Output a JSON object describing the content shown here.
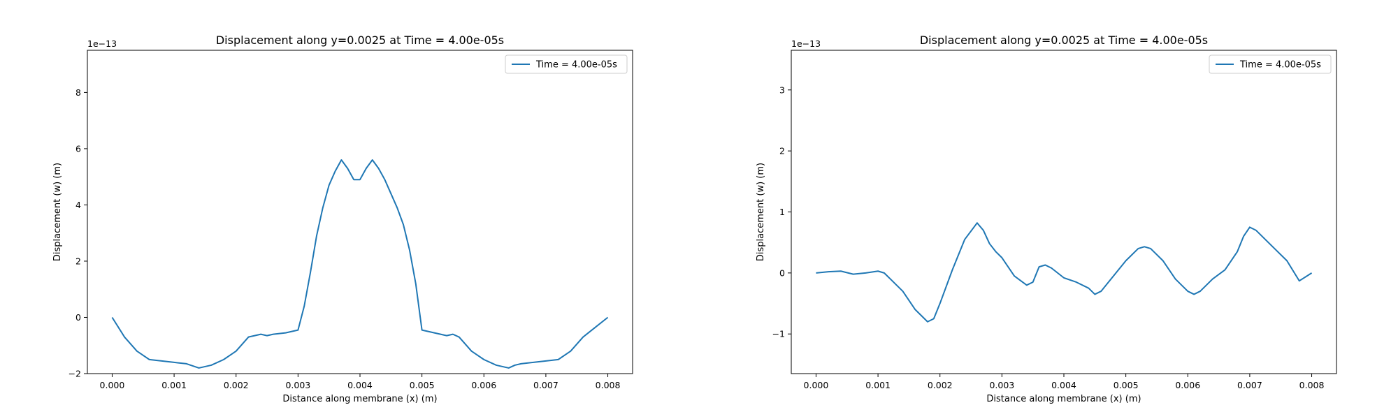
{
  "chart_data": [
    {
      "type": "line",
      "title": "Displacement along y=0.0025 at Time = 4.00e-05s",
      "xlabel": "Distance along membrane (x) (m)",
      "ylabel": "Displacement (w) (m)",
      "offset_text": "1e−13",
      "xlim": [
        -0.0004,
        0.0084
      ],
      "ylim": [
        -2.0,
        9.5
      ],
      "x_ticks": [
        "0.000",
        "0.001",
        "0.002",
        "0.003",
        "0.004",
        "0.005",
        "0.006",
        "0.007",
        "0.008"
      ],
      "y_ticks": [
        "−2",
        "0",
        "2",
        "4",
        "6",
        "8"
      ],
      "legend_position": "upper right",
      "grid": false,
      "series": [
        {
          "name": "Time = 4.00e-05s",
          "color": "#1f77b4",
          "x": [
            0.0,
            0.0002,
            0.0004,
            0.0006,
            0.0008,
            0.001,
            0.0012,
            0.0014,
            0.0015,
            0.0016,
            0.0018,
            0.002,
            0.0022,
            0.0024,
            0.0025,
            0.0026,
            0.0028,
            0.003,
            0.0031,
            0.0032,
            0.0033,
            0.0034,
            0.0035,
            0.0036,
            0.0037,
            0.0038,
            0.0039,
            0.004,
            0.0041,
            0.0042,
            0.0043,
            0.0044,
            0.0045,
            0.0046,
            0.0047,
            0.0048,
            0.0049,
            0.005,
            0.0052,
            0.0054,
            0.0055,
            0.0056,
            0.0058,
            0.006,
            0.0062,
            0.0064,
            0.0065,
            0.0066,
            0.0068,
            0.007,
            0.0072,
            0.0074,
            0.0076,
            0.0078,
            0.008
          ],
          "y": [
            0.0,
            -0.7,
            -1.2,
            -1.5,
            -1.55,
            -1.6,
            -1.65,
            -1.8,
            -1.75,
            -1.7,
            -1.5,
            -1.2,
            -0.7,
            -0.6,
            -0.65,
            -0.6,
            -0.55,
            -0.45,
            0.4,
            1.6,
            2.9,
            3.9,
            4.7,
            5.2,
            5.6,
            5.3,
            4.9,
            4.9,
            5.3,
            5.6,
            5.3,
            4.9,
            4.4,
            3.9,
            3.3,
            2.4,
            1.2,
            -0.45,
            -0.55,
            -0.65,
            -0.6,
            -0.7,
            -1.2,
            -1.5,
            -1.7,
            -1.8,
            -1.7,
            -1.65,
            -1.6,
            -1.55,
            -1.5,
            -1.2,
            -0.7,
            -0.35,
            0.0
          ]
        }
      ]
    },
    {
      "type": "line",
      "title": "Displacement along y=0.0025 at Time = 4.00e-05s",
      "xlabel": "Distance along membrane (x) (m)",
      "ylabel": "Displacement (w) (m)",
      "offset_text": "1e−13",
      "xlim": [
        -0.0004,
        0.0084
      ],
      "ylim": [
        -1.65,
        3.65
      ],
      "x_ticks": [
        "0.000",
        "0.001",
        "0.002",
        "0.003",
        "0.004",
        "0.005",
        "0.006",
        "0.007",
        "0.008"
      ],
      "y_ticks": [
        "−1",
        "0",
        "1",
        "2",
        "3"
      ],
      "legend_position": "upper right",
      "grid": false,
      "series": [
        {
          "name": "Time = 4.00e-05s",
          "color": "#1f77b4",
          "x": [
            0.0,
            0.0002,
            0.0004,
            0.0006,
            0.0008,
            0.001,
            0.0011,
            0.0012,
            0.0014,
            0.0016,
            0.0018,
            0.0019,
            0.002,
            0.0022,
            0.0024,
            0.0026,
            0.0027,
            0.0028,
            0.0029,
            0.003,
            0.0032,
            0.0034,
            0.0035,
            0.0036,
            0.0037,
            0.0038,
            0.004,
            0.0042,
            0.0044,
            0.0045,
            0.0046,
            0.0048,
            0.005,
            0.0052,
            0.0053,
            0.0054,
            0.0056,
            0.0058,
            0.006,
            0.0061,
            0.0062,
            0.0064,
            0.0066,
            0.0068,
            0.0069,
            0.007,
            0.0071,
            0.0072,
            0.0074,
            0.0076,
            0.0078,
            0.008
          ],
          "y": [
            0.0,
            0.02,
            0.03,
            -0.02,
            0.0,
            0.03,
            0.0,
            -0.1,
            -0.3,
            -0.6,
            -0.8,
            -0.75,
            -0.5,
            0.05,
            0.55,
            0.82,
            0.7,
            0.48,
            0.35,
            0.25,
            -0.05,
            -0.2,
            -0.15,
            0.1,
            0.13,
            0.08,
            -0.08,
            -0.15,
            -0.25,
            -0.35,
            -0.3,
            -0.05,
            0.2,
            0.4,
            0.43,
            0.4,
            0.2,
            -0.1,
            -0.3,
            -0.35,
            -0.3,
            -0.1,
            0.05,
            0.35,
            0.6,
            0.75,
            0.7,
            0.6,
            0.4,
            0.2,
            -0.13,
            0.0
          ]
        }
      ]
    }
  ]
}
